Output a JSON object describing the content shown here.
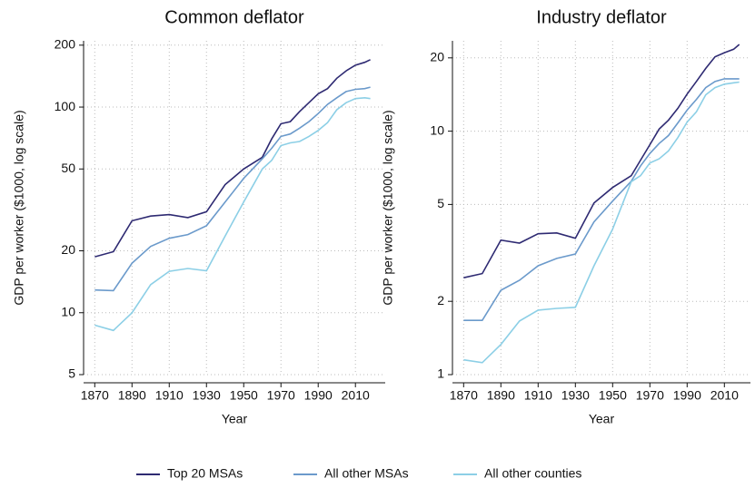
{
  "chart_data": [
    {
      "type": "line",
      "title": "Common deflator",
      "xlabel": "Year",
      "ylabel": "GDP per worker ($1000, log scale)",
      "log_y": true,
      "grid": true,
      "legend": "bottom",
      "xlim": [
        1864,
        2026
      ],
      "ylim": [
        5,
        210
      ],
      "xticks": [
        1870,
        1890,
        1910,
        1930,
        1950,
        1970,
        1990,
        2010
      ],
      "yticks": [
        5,
        10,
        20,
        50,
        100,
        200
      ],
      "x": [
        1870,
        1880,
        1890,
        1900,
        1910,
        1920,
        1930,
        1940,
        1950,
        1960,
        1965,
        1970,
        1975,
        1980,
        1985,
        1990,
        1995,
        2000,
        2005,
        2010,
        2015,
        2018
      ],
      "series": [
        {
          "name": "Top 20 MSAs",
          "color": "#2e2a72",
          "values": [
            18.7,
            19.8,
            28,
            29.5,
            30,
            29,
            31,
            42,
            50,
            57,
            70,
            83,
            85,
            95,
            105,
            116,
            123,
            138,
            150,
            160,
            165,
            170
          ]
        },
        {
          "name": "All other MSAs",
          "color": "#6b9acb",
          "values": [
            12.9,
            12.8,
            17.4,
            21,
            23,
            24,
            26.5,
            34.5,
            45,
            56,
            63,
            72,
            74,
            79,
            85,
            93,
            103,
            111,
            119,
            122,
            123,
            125
          ]
        },
        {
          "name": "All other counties",
          "color": "#8ccfe6",
          "values": [
            8.7,
            8.2,
            10,
            13.7,
            15.9,
            16.4,
            16,
            23.6,
            34.5,
            50,
            55,
            65,
            67,
            68,
            72,
            77,
            84,
            97,
            105,
            110,
            111,
            110
          ]
        }
      ]
    },
    {
      "type": "line",
      "title": "Industry deflator",
      "xlabel": "Year",
      "ylabel": "GDP per worker ($1000, log scale)",
      "log_y": true,
      "grid": true,
      "xlim": [
        1864,
        2024
      ],
      "ylim": [
        1,
        23.5
      ],
      "xticks": [
        1870,
        1890,
        1910,
        1930,
        1950,
        1970,
        1990,
        2010
      ],
      "yticks": [
        1,
        2,
        5,
        10,
        20
      ],
      "x": [
        1870,
        1880,
        1890,
        1900,
        1910,
        1920,
        1930,
        1940,
        1950,
        1960,
        1965,
        1970,
        1975,
        1980,
        1985,
        1990,
        1995,
        2000,
        2005,
        2010,
        2015,
        2018
      ],
      "series": [
        {
          "color": "#2e2a72",
          "values": [
            2.5,
            2.6,
            3.57,
            3.47,
            3.79,
            3.82,
            3.63,
            5.07,
            5.87,
            6.56,
            7.6,
            8.8,
            10.2,
            11.1,
            12.4,
            14.2,
            16,
            18.1,
            20.2,
            21,
            21.7,
            22.7
          ]
        },
        {
          "color": "#6b9acb",
          "values": [
            1.67,
            1.67,
            2.22,
            2.44,
            2.8,
            3.0,
            3.13,
            4.24,
            5.16,
            6.23,
            7.2,
            8.1,
            8.9,
            9.6,
            10.8,
            12.2,
            13.5,
            15.1,
            16,
            16.4,
            16.4,
            16.4
          ]
        },
        {
          "color": "#8ccfe6",
          "values": [
            1.15,
            1.12,
            1.33,
            1.66,
            1.84,
            1.87,
            1.89,
            2.8,
            3.96,
            6.2,
            6.56,
            7.4,
            7.7,
            8.3,
            9.4,
            10.9,
            12,
            14.1,
            15.1,
            15.6,
            15.8,
            15.9
          ]
        }
      ]
    }
  ]
}
